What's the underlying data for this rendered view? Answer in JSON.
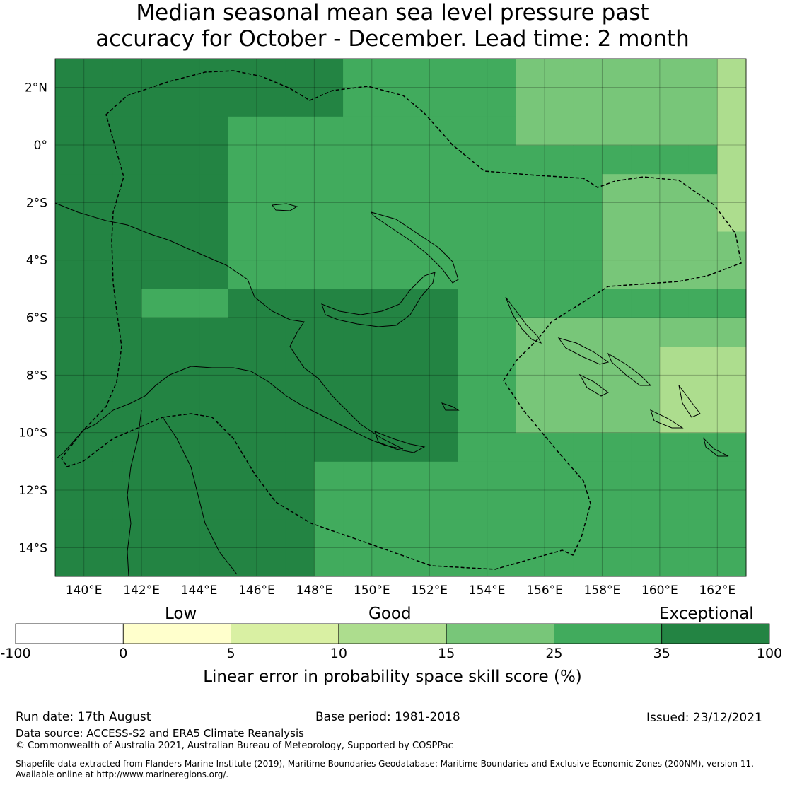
{
  "header": {
    "title_line1": "Median seasonal mean sea level pressure past",
    "title_line2": "accuracy for October - December. Lead time: 2 month"
  },
  "map": {
    "lon_labels": [
      "140°E",
      "142°E",
      "144°E",
      "146°E",
      "148°E",
      "150°E",
      "152°E",
      "154°E",
      "156°E",
      "158°E",
      "160°E",
      "162°E"
    ],
    "lat_labels": [
      "2°N",
      "0°",
      "2°S",
      "4°S",
      "6°S",
      "8°S",
      "10°S",
      "12°S",
      "14°S"
    ],
    "lon_range": [
      139,
      163
    ],
    "lat_range": [
      -15,
      3
    ],
    "dominant_category": "Exceptional (35 to 100)",
    "region_notes": "Darker green (exceptional) skill over New Guinea, Bismarck Sea and Coral Sea west of 153°E; lighter green (good) toward the Solomon Islands and east of 156°E"
  },
  "legend": {
    "category_low": "Low",
    "category_good": "Good",
    "category_exceptional": "Exceptional",
    "ticks": [
      "-100",
      "0",
      "5",
      "10",
      "15",
      "25",
      "35",
      "100"
    ],
    "colors": [
      "#ffffff",
      "#ffffcc",
      "#d9f0a3",
      "#addd8e",
      "#78c679",
      "#41ab5d",
      "#238443"
    ],
    "axis_title": "Linear error in probability space skill score (%)"
  },
  "footer": {
    "run_date": "Run date: 17th August",
    "base_period": "Base period: 1981-2018",
    "issued": "Issued: 23/12/2021",
    "data_source": "Data source: ACCESS-S2 and ERA5 Climate Reanalysis",
    "copyright": "© Commonwealth of Australia 2021, Australian Bureau of Meteorology, Supported by COSPPac",
    "shapefile_line1": "Shapefile data extracted from Flanders Marine Institute (2019), Maritime Boundaries Geodatabase: Maritime Boundaries and Exclusive Economic Zones (200NM), version 11.",
    "shapefile_line2": "Available online at http://www.marineregions.org/."
  }
}
